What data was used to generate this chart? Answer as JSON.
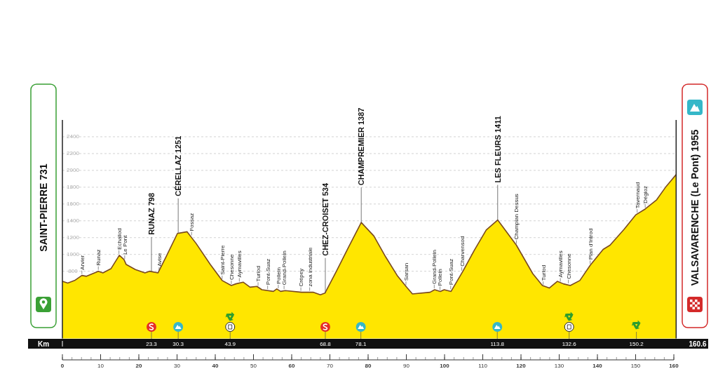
{
  "chart_data": {
    "type": "area",
    "color": "#ffe600",
    "x": [
      0,
      1.4,
      3.2,
      5.1,
      6.3,
      9.4,
      10.6,
      12.7,
      14.9,
      16.1,
      16.7,
      19.1,
      21.6,
      22.8,
      25.0,
      27.1,
      30.1,
      32.6,
      35.0,
      38.7,
      41.8,
      44.2,
      45.4,
      47.3,
      49.1,
      50.9,
      52.2,
      55.2,
      56.1,
      57.1,
      58.3,
      62.6,
      65.6,
      67.5,
      68.7,
      71.7,
      74.8,
      78.2,
      81.5,
      84.6,
      87.6,
      90.1,
      91.6,
      96.2,
      97.4,
      98.9,
      99.9,
      101.7,
      104.8,
      107.8,
      110.9,
      113.9,
      118.8,
      123.1,
      125.6,
      127.4,
      129.5,
      131.1,
      132.9,
      135.4,
      138.1,
      141.5,
      143.3,
      147.0,
      150.0,
      152.5,
      155.5,
      158.0,
      160.6
    ],
    "values": [
      680,
      660,
      690,
      750,
      740,
      800,
      780,
      830,
      990,
      940,
      880,
      820,
      780,
      800,
      780,
      970,
      1250,
      1270,
      1130,
      880,
      690,
      630,
      650,
      670,
      610,
      620,
      580,
      560,
      590,
      560,
      570,
      550,
      550,
      520,
      540,
      800,
      1080,
      1380,
      1220,
      970,
      750,
      610,
      530,
      550,
      580,
      560,
      580,
      560,
      800,
      1050,
      1290,
      1410,
      1110,
      770,
      630,
      600,
      680,
      650,
      630,
      690,
      870,
      1060,
      1110,
      1300,
      1470,
      1540,
      1650,
      1810,
      1950
    ],
    "xlim": [
      0,
      160.6
    ],
    "xticks": [
      0,
      10,
      20,
      30,
      40,
      50,
      60,
      70,
      80,
      90,
      100,
      110,
      120,
      130,
      140,
      150,
      160
    ],
    "ylim": [
      0,
      2600
    ],
    "yticks": [
      800,
      1000,
      1200,
      1400,
      1600,
      1800,
      2000,
      2200,
      2400
    ],
    "grid": "y",
    "annotations": [
      {
        "text": "RUNAZ 798",
        "x": 23.3,
        "y": 790
      },
      {
        "text": "CÉRELLAZ 1251",
        "x": 30.3,
        "y": 1250
      },
      {
        "text": "CHEZ-CROISET 534",
        "x": 68.8,
        "y": 540
      },
      {
        "text": "CHAMPREMIER 1387",
        "x": 78.2,
        "y": 1380
      },
      {
        "text": "LES FLEURS 1411",
        "x": 113.9,
        "y": 1410
      },
      {
        "text": "Arvier",
        "x": 5.1,
        "y": 750
      },
      {
        "text": "Runaz",
        "x": 9.4,
        "y": 800
      },
      {
        "text": "Echallod",
        "x": 14.8,
        "y": 990
      },
      {
        "text": "Le Pont",
        "x": 16.3,
        "y": 930
      },
      {
        "text": "Avise",
        "x": 25.3,
        "y": 790
      },
      {
        "text": "Fossaz",
        "x": 33.8,
        "y": 1210
      },
      {
        "text": "Saint-Pierre",
        "x": 41.8,
        "y": 690
      },
      {
        "text": "Chesonne",
        "x": 44.2,
        "y": 630
      },
      {
        "text": "Aymavilles",
        "x": 46.3,
        "y": 660
      },
      {
        "text": "Turlod",
        "x": 51.2,
        "y": 610
      },
      {
        "text": "Pont-Suaz",
        "x": 53.7,
        "y": 570
      },
      {
        "text": "Pollein",
        "x": 56.5,
        "y": 580
      },
      {
        "text": "Grand-Pollein",
        "x": 58.0,
        "y": 570
      },
      {
        "text": "Crépey",
        "x": 62.4,
        "y": 550
      },
      {
        "text": "zona industriale",
        "x": 64.7,
        "y": 550
      },
      {
        "text": "Sarsan",
        "x": 89.9,
        "y": 620
      },
      {
        "text": "Grand-Pollein",
        "x": 97.3,
        "y": 580
      },
      {
        "text": "Pollein",
        "x": 98.8,
        "y": 560
      },
      {
        "text": "Pont-Suaz",
        "x": 101.6,
        "y": 570
      },
      {
        "text": "Charvensod",
        "x": 104.5,
        "y": 790
      },
      {
        "text": "Champlan Dessus",
        "x": 118.8,
        "y": 1110
      },
      {
        "text": "Turlod",
        "x": 125.8,
        "y": 620
      },
      {
        "text": "Aymavilles",
        "x": 130.3,
        "y": 660
      },
      {
        "text": "Chesonne",
        "x": 132.4,
        "y": 640
      },
      {
        "text": "Plan d'Introd",
        "x": 138.1,
        "y": 870
      },
      {
        "text": "Tavernaud",
        "x": 150.4,
        "y": 1480
      },
      {
        "text": "Dégioz",
        "x": 152.5,
        "y": 1540
      },
      "SAINT-PIERRE 731",
      "VALSAVARENCHE (Le Pont) 1955",
      "Km",
      "160.6",
      {
        "text": "23.3",
        "x": 23.3
      },
      {
        "text": "30.3",
        "x": 30.3
      },
      {
        "text": "43.9",
        "x": 43.9
      },
      {
        "text": "68.8",
        "x": 68.8
      },
      {
        "text": "78.1",
        "x": 78.1
      },
      {
        "text": "113.8",
        "x": 113.8
      },
      {
        "text": "132.6",
        "x": 132.6
      },
      {
        "text": "150.2",
        "x": 150.2
      }
    ]
  }
}
